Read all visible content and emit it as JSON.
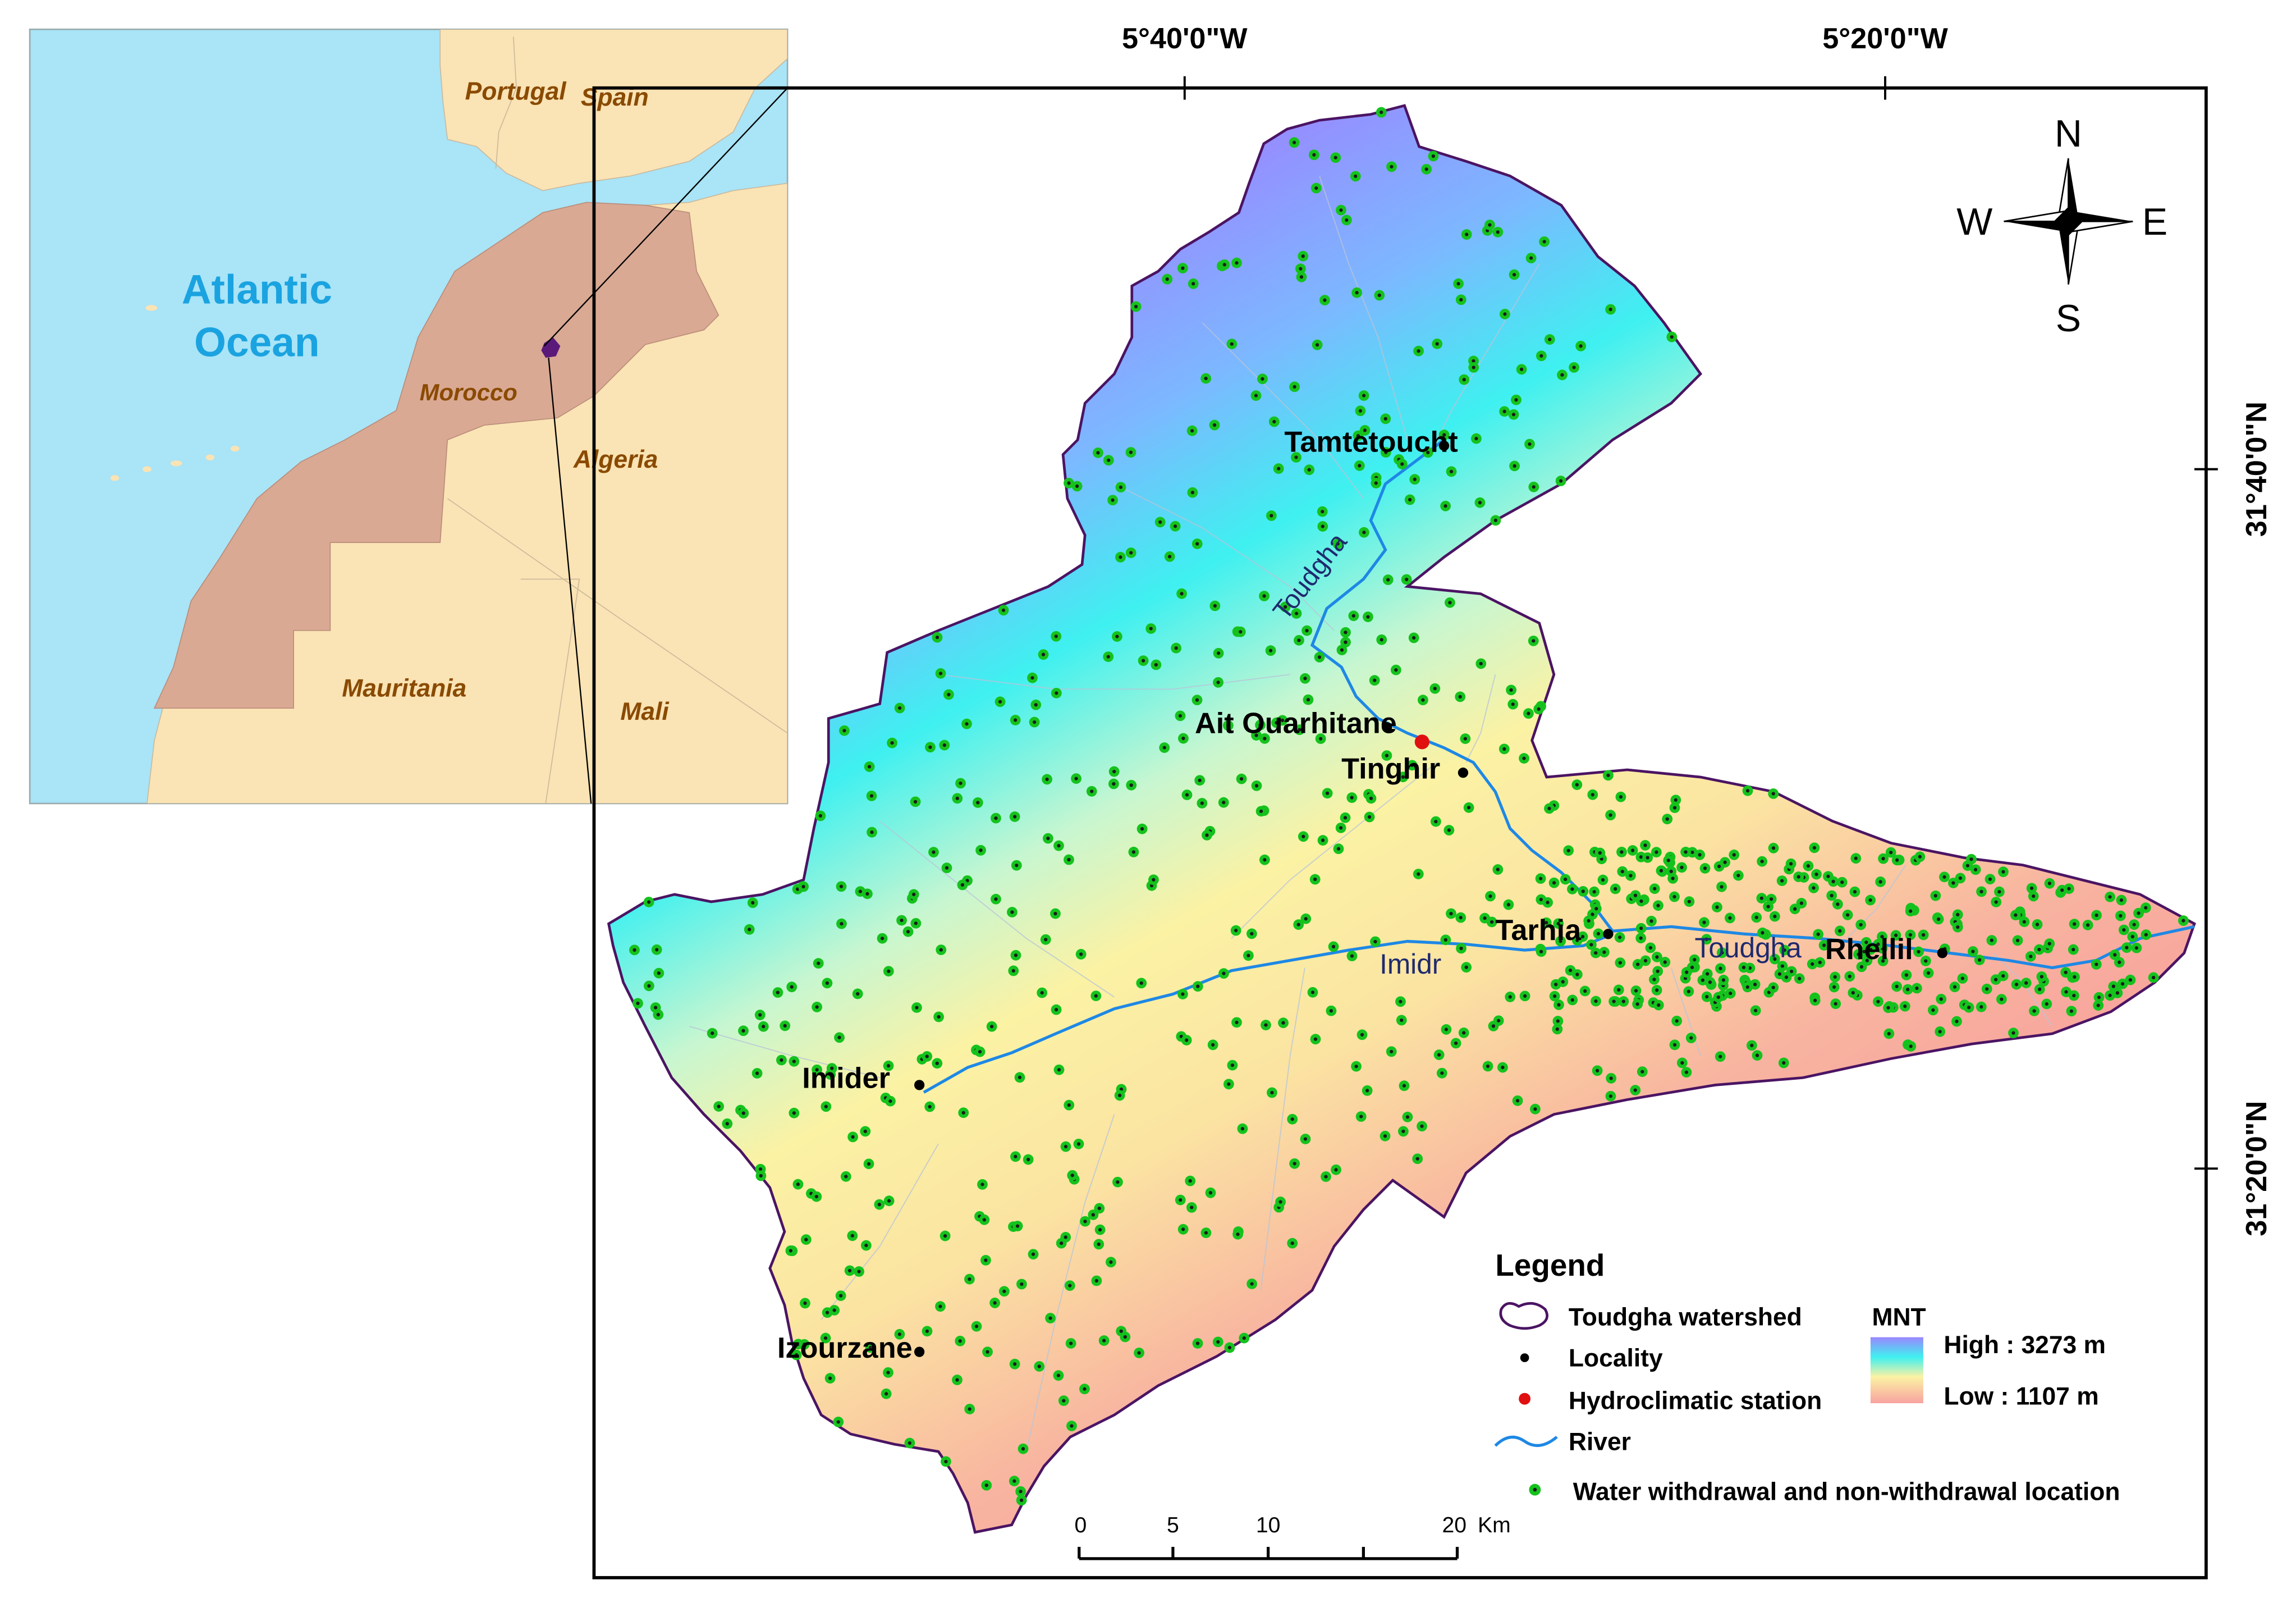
{
  "coordinates": {
    "lon_left": "5°40'0\"W",
    "lon_right": "5°20'0\"W",
    "lat_top": "31°40'0\"N",
    "lat_bottom": "31°20'0\"N"
  },
  "inset": {
    "countries": [
      "Portugal",
      "Spain",
      "Morocco",
      "Algeria",
      "Mauritania",
      "Mali"
    ],
    "ocean_line1": "Atlantic",
    "ocean_line2": "Ocean",
    "colors": {
      "ocean": "#a9e4f7",
      "land": "#fae3b4",
      "morocco": "#d9a994",
      "study_area": "#5b1a7a"
    }
  },
  "localities": [
    "Tamtetoucht",
    "Ait Ouarhitane",
    "Tinghir",
    "Tarhia",
    "Rhellil",
    "Imider",
    "Izourzane"
  ],
  "rivers": [
    "Toudgha",
    "Toudgha",
    "Imidr"
  ],
  "compass": {
    "n": "N",
    "s": "S",
    "e": "E",
    "w": "W"
  },
  "legend": {
    "title": "Legend",
    "items": [
      "Toudgha watershed",
      "Locality",
      "Hydroclimatic station",
      "River",
      "Water withdrawal and non-withdrawal location"
    ],
    "mnt_title": "MNT",
    "high": "High : 3273 m",
    "low": "Low : 1107 m"
  },
  "scale_bar": {
    "labels": [
      "0",
      "5",
      "10",
      "20"
    ],
    "unit": "Km"
  },
  "colors": {
    "dem_high": "#9a86ff",
    "dem_mid": "#3ff0f0",
    "dem_low": "#fbeaa0",
    "dem_lowest": "#f8a3a0",
    "river": "#1e88e5",
    "watershed_border": "#4b1463",
    "well_point": "#15c21d",
    "station": "#e01010"
  }
}
